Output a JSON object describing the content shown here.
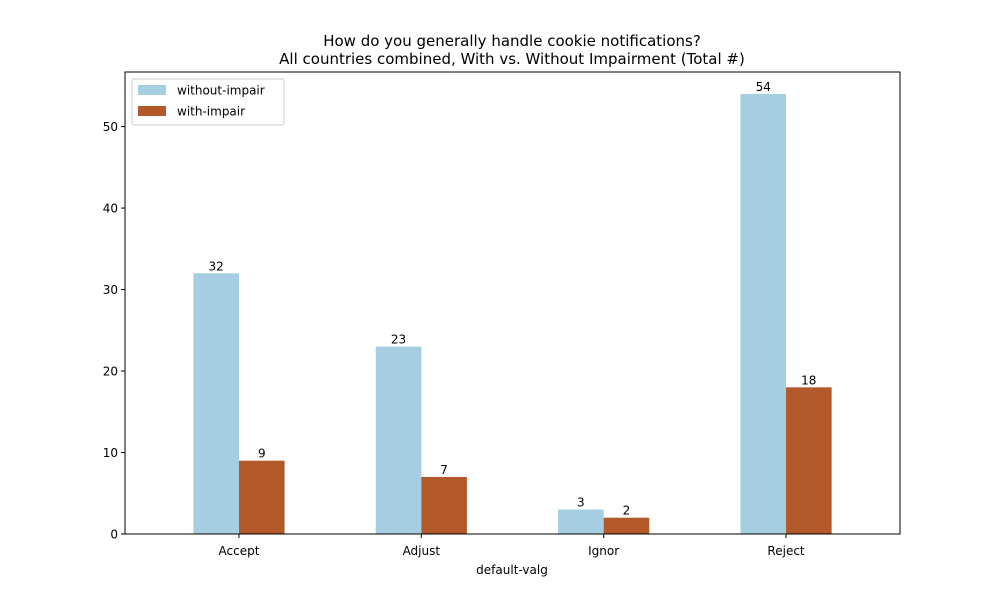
{
  "chart_data": {
    "type": "bar",
    "title": "How do you generally handle cookie notifications?",
    "subtitle": "All countries combined, With vs. Without Impairment (Total #)",
    "xlabel": "default-valg",
    "ylabel": "",
    "categories": [
      "Accept",
      "Adjust",
      "Ignor",
      "Reject"
    ],
    "series": [
      {
        "name": "without-impair",
        "color": "#a6cee3",
        "values": [
          32,
          23,
          3,
          54
        ]
      },
      {
        "name": "with-impair",
        "color": "#b15928",
        "values": [
          9,
          7,
          2,
          18
        ]
      }
    ],
    "ylim": [
      0,
      56.7
    ],
    "yticks": [
      0,
      10,
      20,
      30,
      40,
      50
    ],
    "legend_position": "top-left",
    "grid": false
  }
}
